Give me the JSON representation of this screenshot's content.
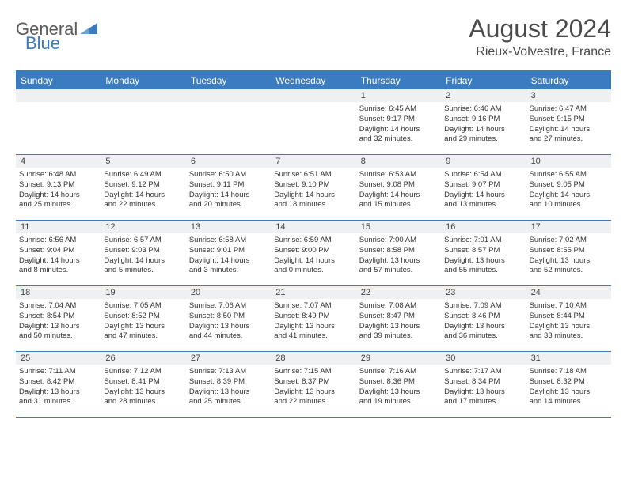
{
  "brand": {
    "part1": "General",
    "part2": "Blue"
  },
  "title": "August 2024",
  "location": "Rieux-Volvestre, France",
  "colors": {
    "accent": "#3b7bbf",
    "header_text": "#ffffff",
    "daynum_bg": "#eef0f2",
    "text": "#333333",
    "page_bg": "#ffffff"
  },
  "day_names": [
    "Sunday",
    "Monday",
    "Tuesday",
    "Wednesday",
    "Thursday",
    "Friday",
    "Saturday"
  ],
  "weeks": [
    [
      null,
      null,
      null,
      null,
      {
        "n": "1",
        "sr": "Sunrise: 6:45 AM",
        "ss": "Sunset: 9:17 PM",
        "dl1": "Daylight: 14 hours",
        "dl2": "and 32 minutes."
      },
      {
        "n": "2",
        "sr": "Sunrise: 6:46 AM",
        "ss": "Sunset: 9:16 PM",
        "dl1": "Daylight: 14 hours",
        "dl2": "and 29 minutes."
      },
      {
        "n": "3",
        "sr": "Sunrise: 6:47 AM",
        "ss": "Sunset: 9:15 PM",
        "dl1": "Daylight: 14 hours",
        "dl2": "and 27 minutes."
      }
    ],
    [
      {
        "n": "4",
        "sr": "Sunrise: 6:48 AM",
        "ss": "Sunset: 9:13 PM",
        "dl1": "Daylight: 14 hours",
        "dl2": "and 25 minutes."
      },
      {
        "n": "5",
        "sr": "Sunrise: 6:49 AM",
        "ss": "Sunset: 9:12 PM",
        "dl1": "Daylight: 14 hours",
        "dl2": "and 22 minutes."
      },
      {
        "n": "6",
        "sr": "Sunrise: 6:50 AM",
        "ss": "Sunset: 9:11 PM",
        "dl1": "Daylight: 14 hours",
        "dl2": "and 20 minutes."
      },
      {
        "n": "7",
        "sr": "Sunrise: 6:51 AM",
        "ss": "Sunset: 9:10 PM",
        "dl1": "Daylight: 14 hours",
        "dl2": "and 18 minutes."
      },
      {
        "n": "8",
        "sr": "Sunrise: 6:53 AM",
        "ss": "Sunset: 9:08 PM",
        "dl1": "Daylight: 14 hours",
        "dl2": "and 15 minutes."
      },
      {
        "n": "9",
        "sr": "Sunrise: 6:54 AM",
        "ss": "Sunset: 9:07 PM",
        "dl1": "Daylight: 14 hours",
        "dl2": "and 13 minutes."
      },
      {
        "n": "10",
        "sr": "Sunrise: 6:55 AM",
        "ss": "Sunset: 9:05 PM",
        "dl1": "Daylight: 14 hours",
        "dl2": "and 10 minutes."
      }
    ],
    [
      {
        "n": "11",
        "sr": "Sunrise: 6:56 AM",
        "ss": "Sunset: 9:04 PM",
        "dl1": "Daylight: 14 hours",
        "dl2": "and 8 minutes."
      },
      {
        "n": "12",
        "sr": "Sunrise: 6:57 AM",
        "ss": "Sunset: 9:03 PM",
        "dl1": "Daylight: 14 hours",
        "dl2": "and 5 minutes."
      },
      {
        "n": "13",
        "sr": "Sunrise: 6:58 AM",
        "ss": "Sunset: 9:01 PM",
        "dl1": "Daylight: 14 hours",
        "dl2": "and 3 minutes."
      },
      {
        "n": "14",
        "sr": "Sunrise: 6:59 AM",
        "ss": "Sunset: 9:00 PM",
        "dl1": "Daylight: 14 hours",
        "dl2": "and 0 minutes."
      },
      {
        "n": "15",
        "sr": "Sunrise: 7:00 AM",
        "ss": "Sunset: 8:58 PM",
        "dl1": "Daylight: 13 hours",
        "dl2": "and 57 minutes."
      },
      {
        "n": "16",
        "sr": "Sunrise: 7:01 AM",
        "ss": "Sunset: 8:57 PM",
        "dl1": "Daylight: 13 hours",
        "dl2": "and 55 minutes."
      },
      {
        "n": "17",
        "sr": "Sunrise: 7:02 AM",
        "ss": "Sunset: 8:55 PM",
        "dl1": "Daylight: 13 hours",
        "dl2": "and 52 minutes."
      }
    ],
    [
      {
        "n": "18",
        "sr": "Sunrise: 7:04 AM",
        "ss": "Sunset: 8:54 PM",
        "dl1": "Daylight: 13 hours",
        "dl2": "and 50 minutes."
      },
      {
        "n": "19",
        "sr": "Sunrise: 7:05 AM",
        "ss": "Sunset: 8:52 PM",
        "dl1": "Daylight: 13 hours",
        "dl2": "and 47 minutes."
      },
      {
        "n": "20",
        "sr": "Sunrise: 7:06 AM",
        "ss": "Sunset: 8:50 PM",
        "dl1": "Daylight: 13 hours",
        "dl2": "and 44 minutes."
      },
      {
        "n": "21",
        "sr": "Sunrise: 7:07 AM",
        "ss": "Sunset: 8:49 PM",
        "dl1": "Daylight: 13 hours",
        "dl2": "and 41 minutes."
      },
      {
        "n": "22",
        "sr": "Sunrise: 7:08 AM",
        "ss": "Sunset: 8:47 PM",
        "dl1": "Daylight: 13 hours",
        "dl2": "and 39 minutes."
      },
      {
        "n": "23",
        "sr": "Sunrise: 7:09 AM",
        "ss": "Sunset: 8:46 PM",
        "dl1": "Daylight: 13 hours",
        "dl2": "and 36 minutes."
      },
      {
        "n": "24",
        "sr": "Sunrise: 7:10 AM",
        "ss": "Sunset: 8:44 PM",
        "dl1": "Daylight: 13 hours",
        "dl2": "and 33 minutes."
      }
    ],
    [
      {
        "n": "25",
        "sr": "Sunrise: 7:11 AM",
        "ss": "Sunset: 8:42 PM",
        "dl1": "Daylight: 13 hours",
        "dl2": "and 31 minutes."
      },
      {
        "n": "26",
        "sr": "Sunrise: 7:12 AM",
        "ss": "Sunset: 8:41 PM",
        "dl1": "Daylight: 13 hours",
        "dl2": "and 28 minutes."
      },
      {
        "n": "27",
        "sr": "Sunrise: 7:13 AM",
        "ss": "Sunset: 8:39 PM",
        "dl1": "Daylight: 13 hours",
        "dl2": "and 25 minutes."
      },
      {
        "n": "28",
        "sr": "Sunrise: 7:15 AM",
        "ss": "Sunset: 8:37 PM",
        "dl1": "Daylight: 13 hours",
        "dl2": "and 22 minutes."
      },
      {
        "n": "29",
        "sr": "Sunrise: 7:16 AM",
        "ss": "Sunset: 8:36 PM",
        "dl1": "Daylight: 13 hours",
        "dl2": "and 19 minutes."
      },
      {
        "n": "30",
        "sr": "Sunrise: 7:17 AM",
        "ss": "Sunset: 8:34 PM",
        "dl1": "Daylight: 13 hours",
        "dl2": "and 17 minutes."
      },
      {
        "n": "31",
        "sr": "Sunrise: 7:18 AM",
        "ss": "Sunset: 8:32 PM",
        "dl1": "Daylight: 13 hours",
        "dl2": "and 14 minutes."
      }
    ]
  ]
}
